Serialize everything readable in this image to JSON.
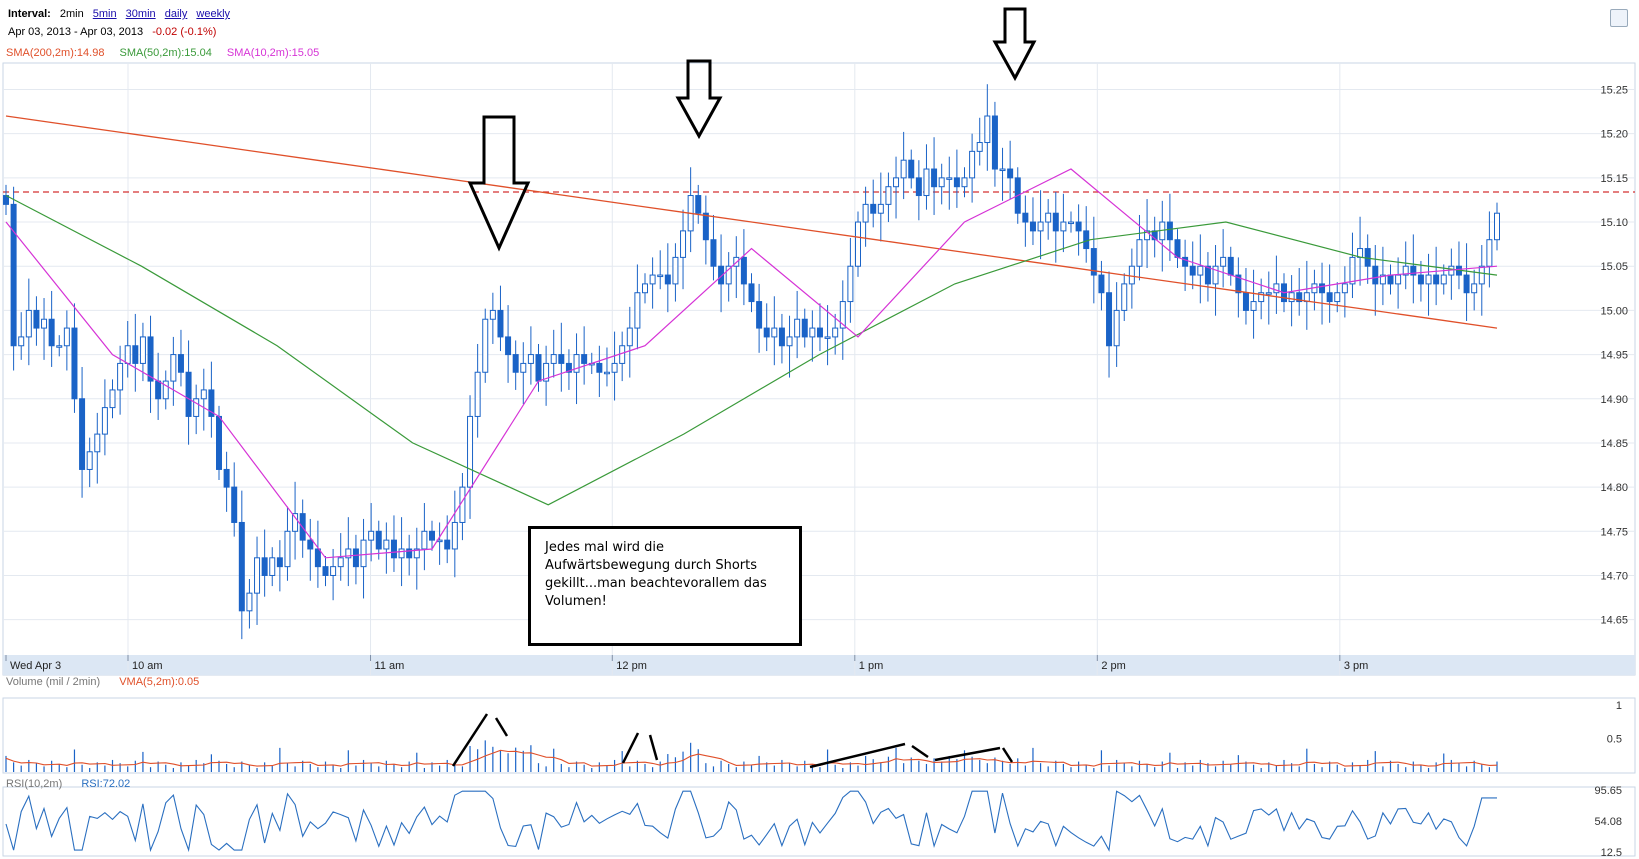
{
  "header": {
    "interval_label": "Interval:",
    "intervals": [
      "2min",
      "5min",
      "30min",
      "daily",
      "weekly"
    ],
    "date_range": "Apr 03, 2013  -  Apr 03, 2013",
    "change": "-0.02 (-0.1%)",
    "sma200": "SMA(200,2m):14.98",
    "sma50": "SMA(50,2m):15.04",
    "sma10": "SMA(10,2m):15.05"
  },
  "volume_panel": {
    "label": "Volume (mil / 2min)",
    "vma": "VMA(5,2m):0.05",
    "ticks": [
      "1",
      "0.5"
    ]
  },
  "rsi_panel": {
    "label": "RSI(10,2m)",
    "value": "RSI:72.02",
    "ticks": [
      "95.65",
      "54.08",
      "12.5"
    ]
  },
  "annotation": {
    "text": "Jedes mal wird die Aufwärtsbewegung durch Shorts gekillt...man beachtevorallem das Volumen!"
  },
  "colors": {
    "candle": "#1a63c7",
    "sma200": "#e0502a",
    "sma50": "#3a9a3a",
    "sma10": "#d633d6",
    "rsi": "#2a6fc0",
    "reference": "#d33030"
  },
  "chart_data": {
    "type": "candlestick",
    "ylim": [
      14.61,
      15.28
    ],
    "y_ticks": [
      15.25,
      15.2,
      15.15,
      15.1,
      15.05,
      15.0,
      14.95,
      14.9,
      14.85,
      14.8,
      14.75,
      14.7,
      14.65
    ],
    "time_labels": [
      "Wed Apr 3",
      "10 am",
      "11 am",
      "12 pm",
      "1 pm",
      "2 pm",
      "3 pm"
    ],
    "reference_line": 15.134,
    "close": [
      15.12,
      14.96,
      14.97,
      15.0,
      14.98,
      14.99,
      14.96,
      14.96,
      14.98,
      14.9,
      14.82,
      14.84,
      14.86,
      14.89,
      14.91,
      14.94,
      14.96,
      14.94,
      14.97,
      14.92,
      14.9,
      14.92,
      14.95,
      14.93,
      14.88,
      14.9,
      14.91,
      14.88,
      14.82,
      14.8,
      14.76,
      14.66,
      14.68,
      14.72,
      14.7,
      14.72,
      14.71,
      14.75,
      14.77,
      14.74,
      14.73,
      14.71,
      14.7,
      14.71,
      14.72,
      14.73,
      14.71,
      14.74,
      14.75,
      14.73,
      14.74,
      14.72,
      14.73,
      14.72,
      14.73,
      14.75,
      14.74,
      14.74,
      14.73,
      14.76,
      14.8,
      14.88,
      14.93,
      14.99,
      15.0,
      14.97,
      14.95,
      14.93,
      14.94,
      14.95,
      14.92,
      14.94,
      14.95,
      14.94,
      14.93,
      14.95,
      14.94,
      14.94,
      14.93,
      14.93,
      14.94,
      14.96,
      14.98,
      15.02,
      15.03,
      15.04,
      15.04,
      15.03,
      15.06,
      15.09,
      15.13,
      15.11,
      15.08,
      15.05,
      15.03,
      15.05,
      15.06,
      15.03,
      15.01,
      14.98,
      14.97,
      14.98,
      14.96,
      14.97,
      14.99,
      14.97,
      14.98,
      14.97,
      14.97,
      14.98,
      15.01,
      15.05,
      15.1,
      15.12,
      15.11,
      15.12,
      15.14,
      15.15,
      15.17,
      15.15,
      15.13,
      15.16,
      15.14,
      15.15,
      15.15,
      15.14,
      15.15,
      15.18,
      15.19,
      15.22,
      15.16,
      15.16,
      15.15,
      15.11,
      15.1,
      15.09,
      15.1,
      15.11,
      15.09,
      15.1,
      15.1,
      15.09,
      15.07,
      15.04,
      15.02,
      14.96,
      15.0,
      15.03,
      15.05,
      15.08,
      15.09,
      15.08,
      15.1,
      15.08,
      15.06,
      15.05,
      15.04,
      15.05,
      15.03,
      15.05,
      15.06,
      15.04,
      15.02,
      15.0,
      15.01,
      15.02,
      15.02,
      15.03,
      15.01,
      15.02,
      15.01,
      15.02,
      15.03,
      15.02,
      15.01,
      15.02,
      15.03,
      15.06,
      15.07,
      15.05,
      15.03,
      15.04,
      15.03,
      15.04,
      15.05,
      15.04,
      15.03,
      15.04,
      15.03,
      15.04,
      15.05,
      15.04,
      15.02,
      15.03,
      15.05,
      15.08,
      15.11
    ],
    "sma200": [
      15.22,
      15.21,
      15.2,
      15.19,
      15.18,
      15.17,
      15.16,
      15.15,
      15.14,
      15.13,
      15.12,
      15.11,
      15.1,
      15.09,
      15.08,
      15.07,
      15.06,
      15.05,
      15.04,
      15.03,
      15.02,
      15.01,
      15.0,
      14.99,
      14.98
    ],
    "sma50": [
      15.13,
      15.05,
      14.96,
      14.85,
      14.78,
      14.86,
      14.95,
      15.03,
      15.08,
      15.1,
      15.06,
      15.04
    ],
    "sma10": [
      15.1,
      14.95,
      14.88,
      14.72,
      14.73,
      14.92,
      14.96,
      15.07,
      14.97,
      15.1,
      15.16,
      15.06,
      15.02,
      15.04,
      15.05
    ],
    "volume_ylim": [
      0,
      1
    ],
    "rsi_ylim": [
      12.5,
      95.65
    ]
  }
}
